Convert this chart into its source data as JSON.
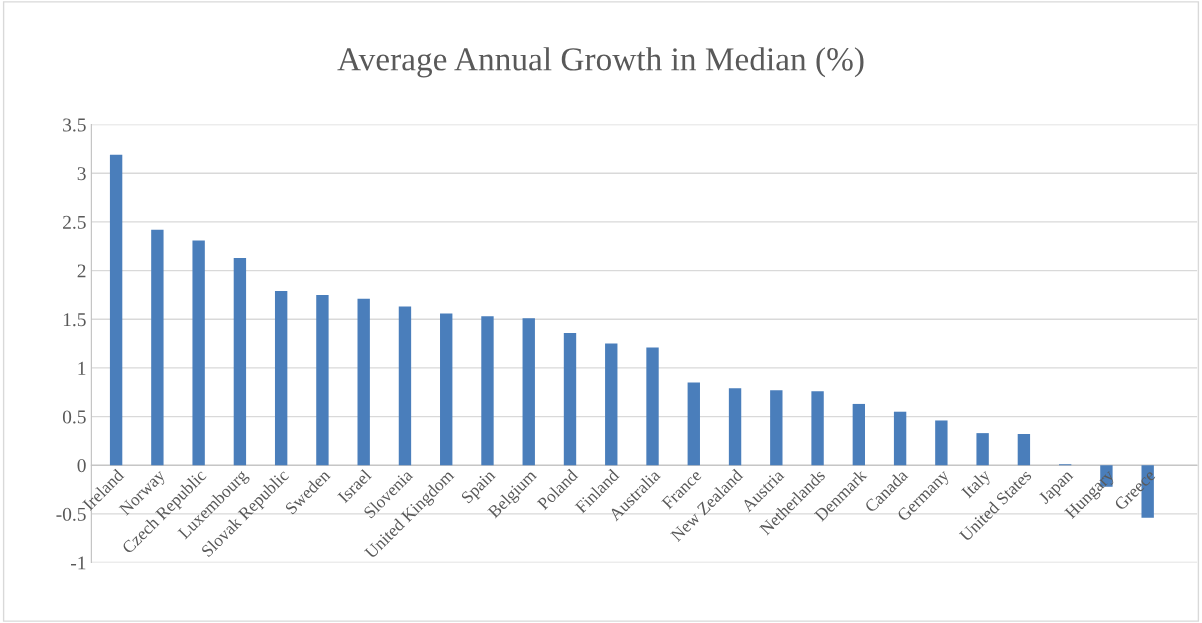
{
  "chart_data": {
    "type": "bar",
    "title": "Average Annual Growth in Median (%)",
    "categories": [
      "Ireland",
      "Norway",
      "Czech Republic",
      "Luxembourg",
      "Slovak Republic",
      "Sweden",
      "Israel",
      "Slovenia",
      "United Kingdom",
      "Spain",
      "Belgium",
      "Poland",
      "Finland",
      "Australia",
      "France",
      "New Zealand",
      "Austria",
      "Netherlands",
      "Denmark",
      "Canada",
      "Germany",
      "Italy",
      "United States",
      "Japan",
      "Hungary",
      "Greece"
    ],
    "values": [
      3.19,
      2.42,
      2.31,
      2.13,
      1.79,
      1.75,
      1.71,
      1.63,
      1.56,
      1.53,
      1.51,
      1.36,
      1.25,
      1.21,
      0.85,
      0.79,
      0.77,
      0.76,
      0.63,
      0.55,
      0.46,
      0.33,
      0.32,
      0.01,
      -0.22,
      -0.54
    ],
    "color": "#4a7ebb",
    "ylim": [
      -1,
      3.5
    ],
    "yticks": [
      -1,
      -0.5,
      0,
      0.5,
      1,
      1.5,
      2,
      2.5,
      3,
      3.5
    ],
    "grid": "y",
    "legend": false
  }
}
